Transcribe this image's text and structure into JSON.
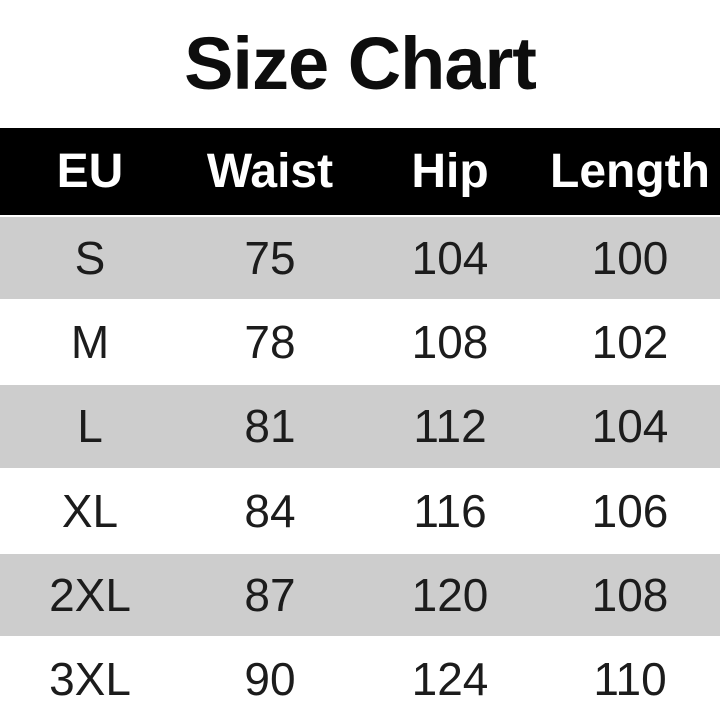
{
  "title": "Size Chart",
  "chart_data": {
    "type": "table",
    "title": "Size Chart",
    "columns": [
      "EU",
      "Waist",
      "Hip",
      "Length"
    ],
    "rows": [
      [
        "S",
        "75",
        "104",
        "100"
      ],
      [
        "M",
        "78",
        "108",
        "102"
      ],
      [
        "L",
        "81",
        "112",
        "104"
      ],
      [
        "XL",
        "84",
        "116",
        "106"
      ],
      [
        "2XL",
        "87",
        "120",
        "108"
      ],
      [
        "3XL",
        "90",
        "124",
        "110"
      ]
    ],
    "layout": {
      "header_bg": "#000000",
      "header_text_color": "#ffffff",
      "alt_row_bg": "#cdcdcd",
      "row_bg": "#ffffff",
      "body_text_color": "#1c1c1c",
      "title_color": "#0d0d0d",
      "alt_row_indices": [
        0,
        2,
        4
      ]
    }
  }
}
